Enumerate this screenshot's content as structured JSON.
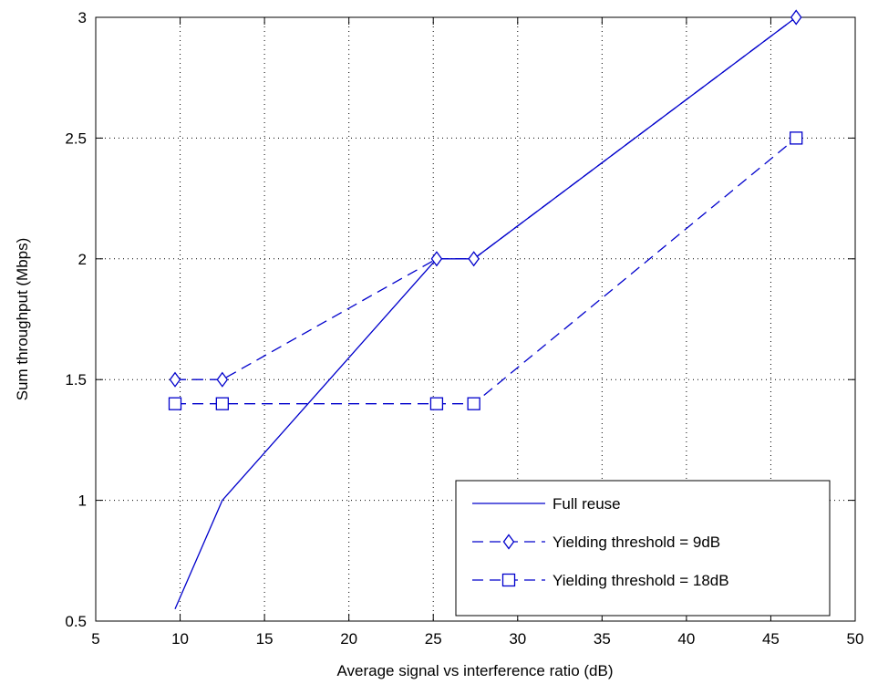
{
  "chart_data": {
    "type": "line",
    "xlabel": "Average signal vs interference ratio (dB)",
    "ylabel": "Sum throughput (Mbps)",
    "xlim": [
      5,
      50
    ],
    "ylim": [
      0.5,
      3
    ],
    "xticks": [
      5,
      10,
      15,
      20,
      25,
      30,
      35,
      40,
      45,
      50
    ],
    "yticks": [
      0.5,
      1,
      1.5,
      2,
      2.5,
      3
    ],
    "xtick_labels": [
      "5",
      "10",
      "15",
      "20",
      "25",
      "30",
      "35",
      "40",
      "45",
      "50"
    ],
    "ytick_labels": [
      "0.5",
      "1",
      "1.5",
      "2",
      "2.5",
      "3"
    ],
    "grid": true,
    "legend_position": "bottom-right",
    "series": [
      {
        "name": "Full reuse",
        "color": "#0000cc",
        "line_style": "solid",
        "marker": "none",
        "x": [
          9.7,
          12.5,
          25.2,
          27.4,
          46.5
        ],
        "y": [
          0.55,
          1.0,
          2.0,
          2.0,
          3.0
        ]
      },
      {
        "name": "Yielding threshold = 9dB",
        "color": "#0000cc",
        "line_style": "dashed",
        "marker": "diamond",
        "x": [
          9.7,
          12.5,
          25.2,
          27.4,
          46.5
        ],
        "y": [
          1.5,
          1.5,
          2.0,
          2.0,
          3.0
        ]
      },
      {
        "name": "Yielding threshold = 18dB",
        "color": "#0000cc",
        "line_style": "dashed",
        "marker": "square",
        "x": [
          9.7,
          12.5,
          25.2,
          27.4,
          46.5
        ],
        "y": [
          1.4,
          1.4,
          1.4,
          1.4,
          2.5
        ]
      }
    ]
  }
}
